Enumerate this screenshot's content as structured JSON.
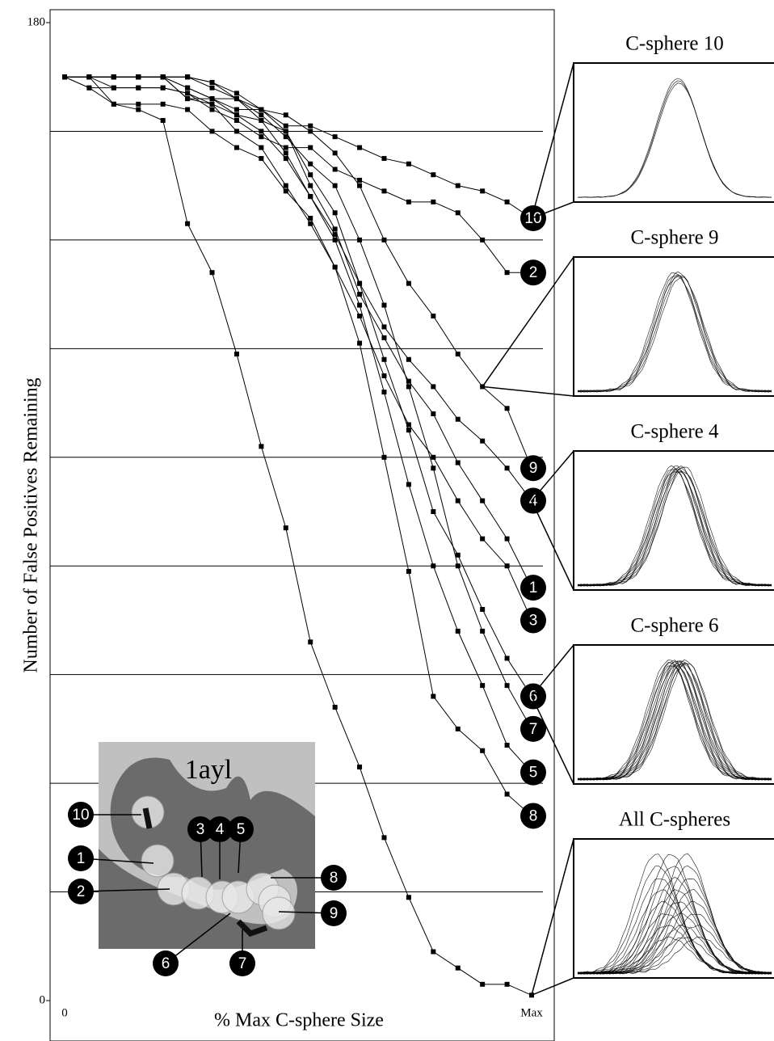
{
  "chart_data": {
    "type": "line",
    "y_label": "Number of False Positives Remaining",
    "x_label": "% Max C-sphere Size",
    "categories": [
      "0",
      null,
      null,
      null,
      null,
      null,
      null,
      null,
      null,
      null,
      null,
      null,
      null,
      null,
      null,
      null,
      null,
      null,
      null,
      "Max"
    ],
    "ylim": [
      0,
      180
    ],
    "yticks": [
      0,
      180
    ],
    "grid_lines": [
      20,
      40,
      60,
      80,
      100,
      120,
      140,
      160
    ],
    "series": [
      {
        "name": "10",
        "color": "#000000",
        "values": [
          170,
          170,
          170,
          170,
          170,
          168,
          166,
          164,
          164,
          161,
          161,
          159,
          157,
          155,
          154,
          152,
          150,
          149,
          147,
          144
        ]
      },
      {
        "name": "2",
        "color": "#000000",
        "values": [
          170,
          170,
          168,
          168,
          168,
          167,
          164,
          162,
          159,
          157,
          157,
          153,
          151,
          149,
          147,
          147,
          145,
          140,
          134,
          134
        ]
      },
      {
        "name": "9",
        "color": "#000000",
        "values": [
          170,
          170,
          170,
          170,
          170,
          166,
          166,
          166,
          164,
          163,
          160,
          156,
          150,
          140,
          132,
          126,
          119,
          113,
          109,
          98
        ]
      },
      {
        "name": "4",
        "color": "#000000",
        "values": [
          170,
          170,
          170,
          170,
          170,
          170,
          169,
          166,
          162,
          156,
          148,
          141,
          132,
          124,
          118,
          113,
          107,
          103,
          98,
          92
        ]
      },
      {
        "name": "1",
        "color": "#000000",
        "values": [
          170,
          170,
          170,
          170,
          170,
          170,
          169,
          167,
          164,
          160,
          150,
          142,
          130,
          122,
          114,
          108,
          99,
          92,
          85,
          76
        ]
      },
      {
        "name": "3",
        "color": "#000000",
        "values": [
          170,
          168,
          168,
          168,
          168,
          167,
          165,
          160,
          157,
          150,
          143,
          135,
          126,
          115,
          106,
          100,
          92,
          85,
          80,
          70
        ]
      },
      {
        "name": "6",
        "color": "#000000",
        "values": [
          170,
          170,
          170,
          170,
          170,
          166,
          165,
          163,
          162,
          160,
          152,
          145,
          132,
          118,
          105,
          90,
          82,
          72,
          63,
          56
        ]
      },
      {
        "name": "7",
        "color": "#000000",
        "values": [
          170,
          170,
          170,
          170,
          170,
          170,
          168,
          166,
          163,
          159,
          154,
          150,
          140,
          128,
          113,
          98,
          80,
          68,
          58,
          50
        ]
      },
      {
        "name": "5",
        "color": "#000000",
        "values": [
          170,
          170,
          170,
          170,
          170,
          168,
          166,
          163,
          160,
          155,
          148,
          140,
          128,
          112,
          95,
          80,
          68,
          58,
          47,
          42
        ]
      },
      {
        "name": "8",
        "color": "#000000",
        "values": [
          170,
          168,
          165,
          165,
          165,
          164,
          160,
          157,
          155,
          149,
          144,
          135,
          121,
          100,
          79,
          56,
          50,
          46,
          38,
          34
        ]
      },
      {
        "color": "#000000",
        "values": [
          170,
          170,
          165,
          164,
          162,
          143,
          134,
          119,
          102,
          87,
          66,
          54,
          43,
          30,
          19,
          9,
          6,
          3,
          3,
          1
        ]
      }
    ],
    "insets": [
      {
        "title": "C-sphere 10",
        "series": 0,
        "point": 19
      },
      {
        "title": "C-sphere 9",
        "series": 2,
        "point": 17
      },
      {
        "title": "C-sphere 4",
        "series": 3,
        "point": 19
      },
      {
        "title": "C-sphere 6",
        "series": 6,
        "point": 19
      },
      {
        "title": "All C-spheres",
        "series": 10,
        "point": 19
      }
    ],
    "structure_label": "1ayl"
  }
}
